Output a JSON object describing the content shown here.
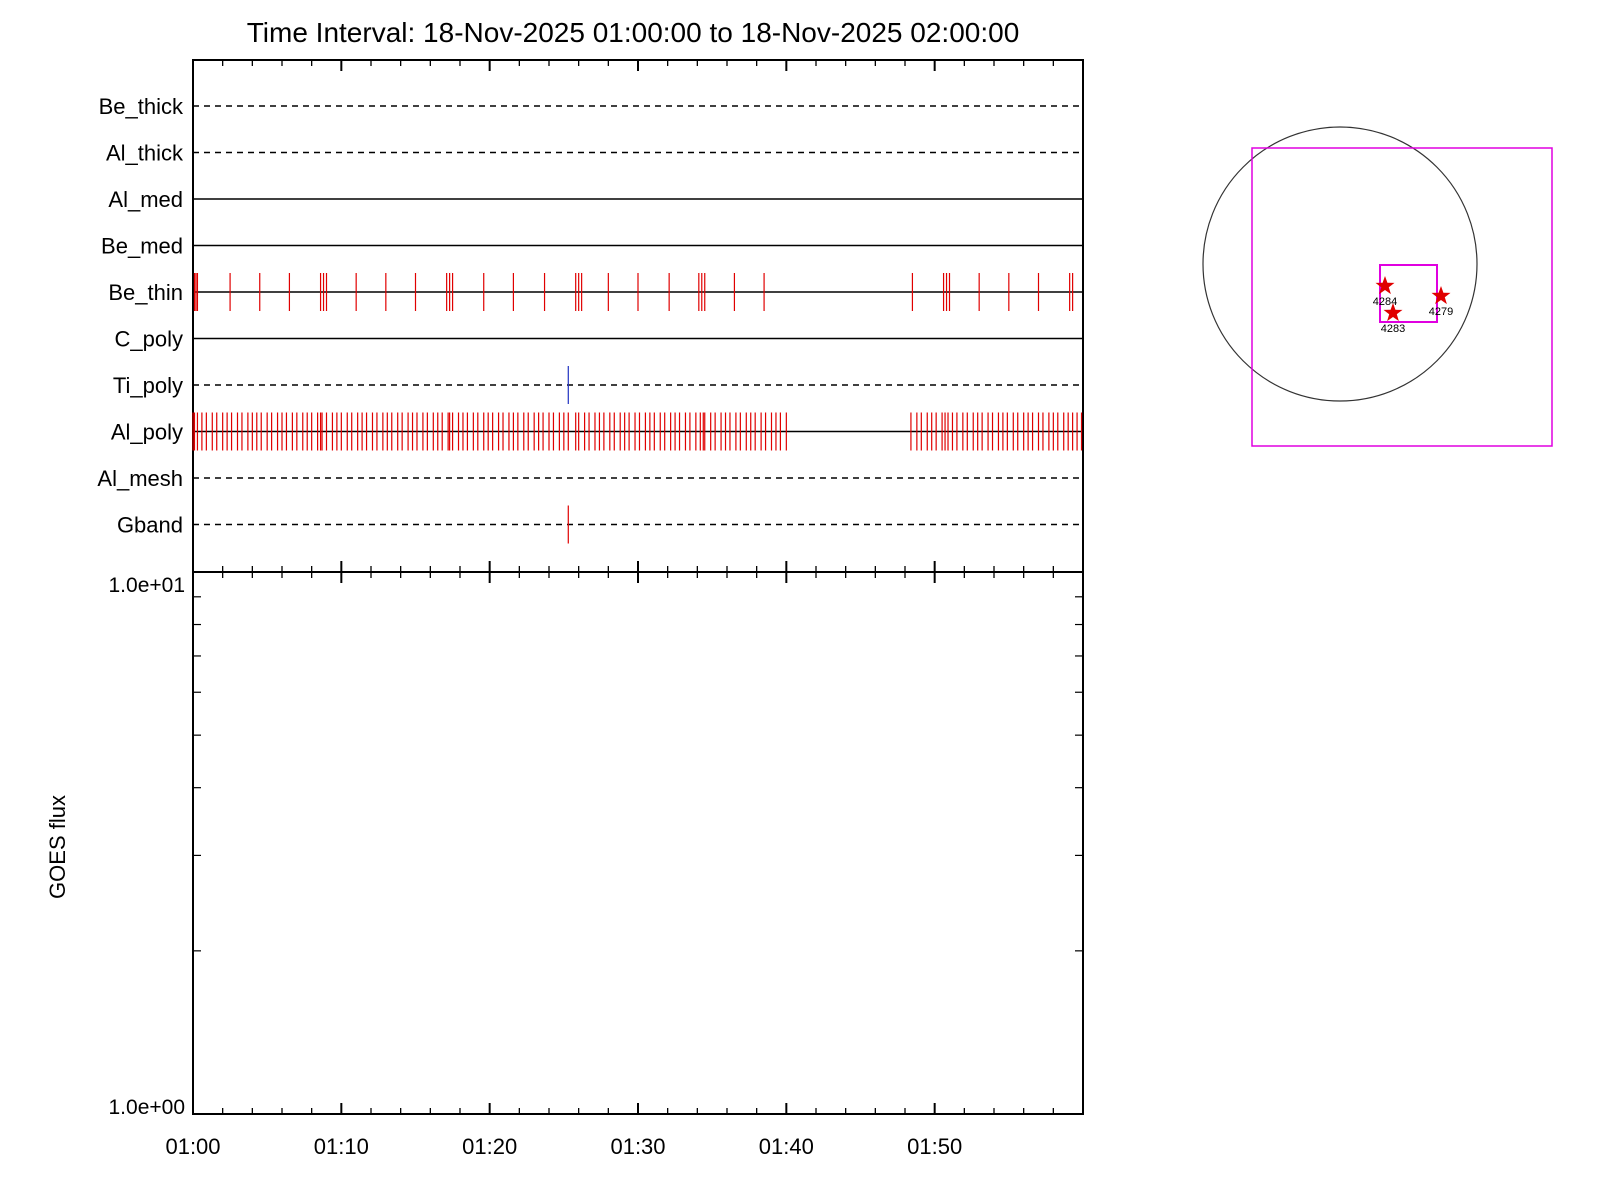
{
  "chart_data": [
    {
      "type": "timeline",
      "title": "Time Interval: 18-Nov-2025 01:00:00 to 18-Nov-2025 02:00:00",
      "x_range": [
        "01:00",
        "02:00"
      ],
      "x_tick_labels": [
        "01:00",
        "01:10",
        "01:20",
        "01:30",
        "01:40",
        "01:50"
      ],
      "channels": [
        {
          "name": "Be_thick",
          "line": "dashed",
          "events": [],
          "event_color": "#e00000"
        },
        {
          "name": "Al_thick",
          "line": "dashed",
          "events": [],
          "event_color": "#e00000"
        },
        {
          "name": "Al_med",
          "line": "solid",
          "events": [],
          "event_color": "#e00000"
        },
        {
          "name": "Be_med",
          "line": "solid",
          "events": [],
          "event_color": "#e00000"
        },
        {
          "name": "Be_thin",
          "line": "solid",
          "event_color": "#e00000",
          "events": [
            0.1,
            0.2,
            0.3,
            2.5,
            4.5,
            6.5,
            8.6,
            8.8,
            9.0,
            11.0,
            13.0,
            15.0,
            17.1,
            17.3,
            17.5,
            19.6,
            21.6,
            23.7,
            25.8,
            26.0,
            26.2,
            28.0,
            30.0,
            32.1,
            34.1,
            34.3,
            34.5,
            36.5,
            38.5,
            48.5,
            50.6,
            50.8,
            51.0,
            53.0,
            55.0,
            57.0,
            59.1,
            59.3
          ]
        },
        {
          "name": "C_poly",
          "line": "solid",
          "events": [],
          "event_color": "#e00000"
        },
        {
          "name": "Ti_poly",
          "line": "dashed",
          "event_color": "#2030c0",
          "events": [
            25.3
          ]
        },
        {
          "name": "Al_poly",
          "line": "solid",
          "event_color": "#e00000",
          "events": [
            0.0,
            0.1,
            0.3,
            0.6,
            0.9,
            1.3,
            1.6,
            2.0,
            2.3,
            2.6,
            3.0,
            3.3,
            3.7,
            4.0,
            4.3,
            4.6,
            5.0,
            5.3,
            5.7,
            6.0,
            6.3,
            6.7,
            7.0,
            7.4,
            7.7,
            8.0,
            8.4,
            8.6,
            8.7,
            9.0,
            9.4,
            9.7,
            10.0,
            10.4,
            10.7,
            11.1,
            11.4,
            11.7,
            12.1,
            12.4,
            12.8,
            13.1,
            13.4,
            13.8,
            14.1,
            14.5,
            14.8,
            15.1,
            15.5,
            15.8,
            16.2,
            16.5,
            16.8,
            17.2,
            17.3,
            17.5,
            17.9,
            18.2,
            18.5,
            18.9,
            19.2,
            19.6,
            19.9,
            20.2,
            20.6,
            20.9,
            21.3,
            21.6,
            21.9,
            22.3,
            22.6,
            23.0,
            23.3,
            23.6,
            24.0,
            24.3,
            24.7,
            25.0,
            25.3,
            25.8,
            26.0,
            26.4,
            26.7,
            27.1,
            27.4,
            27.7,
            28.1,
            28.4,
            28.8,
            29.1,
            29.4,
            29.8,
            30.1,
            30.5,
            30.8,
            31.1,
            31.5,
            31.8,
            32.2,
            32.5,
            32.8,
            33.2,
            33.5,
            33.9,
            34.2,
            34.4,
            34.5,
            34.9,
            35.2,
            35.6,
            35.9,
            36.2,
            36.6,
            36.9,
            37.3,
            37.6,
            37.9,
            38.3,
            38.6,
            39.0,
            39.3,
            39.6,
            40.0,
            48.4,
            48.8,
            49.1,
            49.5,
            49.8,
            50.1,
            50.5,
            50.7,
            50.9,
            51.2,
            51.5,
            51.9,
            52.2,
            52.6,
            52.9,
            53.2,
            53.6,
            53.9,
            54.3,
            54.6,
            54.9,
            55.3,
            55.6,
            56.0,
            56.3,
            56.6,
            57.0,
            57.3,
            57.7,
            58.0,
            58.3,
            58.7,
            59.0,
            59.3,
            59.6,
            59.9
          ]
        },
        {
          "name": "Al_mesh",
          "line": "dashed",
          "events": [],
          "event_color": "#e00000"
        },
        {
          "name": "Gband",
          "line": "dashed",
          "event_color": "#e00000",
          "events": [
            25.3
          ]
        }
      ]
    },
    {
      "type": "line",
      "ylabel": "GOES flux",
      "y_scale": "log",
      "ylim": [
        1,
        10
      ],
      "y_tick_labels": [
        "1.0e+01",
        "1.0e+00"
      ],
      "x_tick_labels": [
        "01:00",
        "01:10",
        "01:20",
        "01:30",
        "01:40",
        "01:50"
      ],
      "series": []
    }
  ],
  "sun_map": {
    "fov_color": "#e000e0",
    "star_color": "#e00000",
    "regions": [
      "4284",
      "4283",
      "4279"
    ]
  }
}
